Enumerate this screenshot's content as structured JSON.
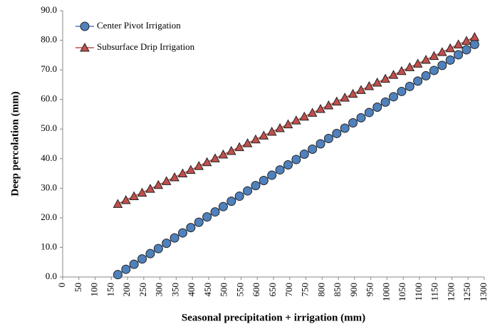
{
  "chart_data": {
    "type": "line",
    "xlabel": "Seasonal precipitation + irrigation (mm)",
    "ylabel": "Deep percolation (mm)",
    "x": [
      170,
      195,
      220,
      245,
      270,
      295,
      320,
      345,
      370,
      395,
      420,
      445,
      470,
      495,
      520,
      545,
      570,
      595,
      620,
      645,
      670,
      695,
      720,
      745,
      770,
      795,
      820,
      845,
      870,
      895,
      920,
      945,
      970,
      995,
      1020,
      1045,
      1070,
      1095,
      1120,
      1145,
      1170,
      1195,
      1220,
      1245,
      1270
    ],
    "series": [
      {
        "name": "Center Pivot Irrigation",
        "color": "#4f81bd",
        "marker": "circle",
        "values": [
          0.8,
          2.6,
          4.3,
          6.1,
          7.9,
          9.6,
          11.4,
          13.2,
          14.9,
          16.7,
          18.5,
          20.3,
          22.0,
          23.8,
          25.6,
          27.3,
          29.1,
          30.9,
          32.6,
          34.4,
          36.2,
          37.9,
          39.7,
          41.5,
          43.2,
          45.0,
          46.8,
          48.5,
          50.3,
          52.1,
          53.8,
          55.6,
          57.4,
          59.1,
          60.9,
          62.7,
          64.4,
          66.2,
          68.0,
          69.8,
          71.5,
          73.3,
          75.1,
          76.8,
          78.6
        ]
      },
      {
        "name": "Subsurface Drip Irrigation",
        "color": "#c0504d",
        "marker": "triangle",
        "values": [
          24.7,
          26.0,
          27.3,
          28.5,
          29.8,
          31.1,
          32.4,
          33.7,
          35.0,
          36.2,
          37.5,
          38.8,
          40.1,
          41.4,
          42.6,
          43.9,
          45.2,
          46.5,
          47.8,
          49.1,
          50.3,
          51.6,
          52.9,
          54.2,
          55.5,
          56.8,
          58.0,
          59.3,
          60.6,
          61.9,
          63.2,
          64.5,
          65.7,
          67.0,
          68.3,
          69.6,
          70.9,
          72.1,
          73.4,
          74.7,
          76.0,
          77.3,
          78.6,
          79.8,
          81.1
        ]
      }
    ],
    "xlim": [
      0,
      1300
    ],
    "xticks": [
      0,
      50,
      100,
      150,
      200,
      250,
      300,
      350,
      400,
      450,
      500,
      550,
      600,
      650,
      700,
      750,
      800,
      850,
      900,
      950,
      1000,
      1050,
      1100,
      1150,
      1200,
      1250,
      1300
    ],
    "ylim": [
      0,
      90
    ],
    "yticks": [
      {
        "value": 0,
        "label": "0.0"
      },
      {
        "value": 10,
        "label": "10.0"
      },
      {
        "value": 20,
        "label": "20.0"
      },
      {
        "value": 30,
        "label": "30.0"
      },
      {
        "value": 40,
        "label": "40.0"
      },
      {
        "value": 50,
        "label": "50.0"
      },
      {
        "value": 60,
        "label": "60.0"
      },
      {
        "value": 70,
        "label": "70.0"
      },
      {
        "value": 80,
        "label": "80.0"
      },
      {
        "value": 90,
        "label": "90.0"
      }
    ],
    "grid": false,
    "legend": "upper left"
  }
}
